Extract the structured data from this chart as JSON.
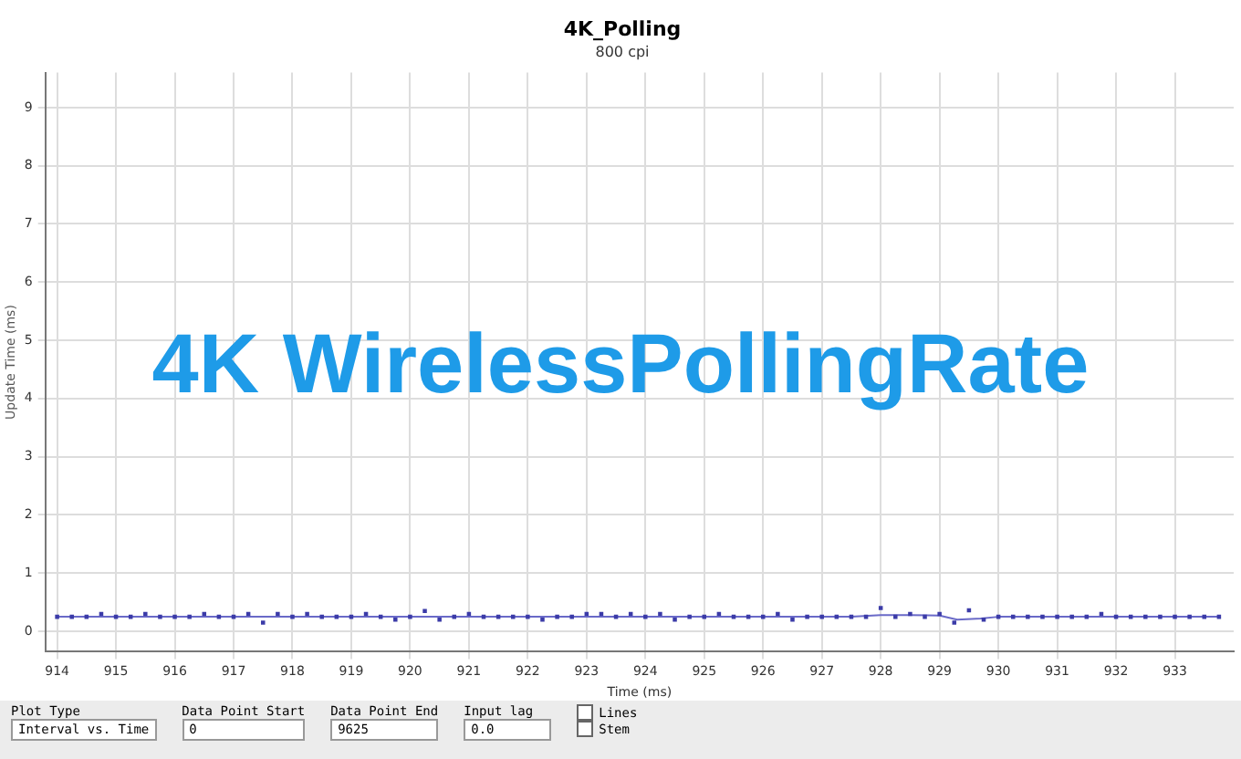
{
  "chart_data": {
    "type": "scatter",
    "title": "4K_Polling",
    "subtitle": "800 cpi",
    "xlabel": "Time (ms)",
    "ylabel": "Update Time (ms)",
    "xlim": [
      913.8,
      934
    ],
    "xticks": [
      914,
      915,
      916,
      917,
      918,
      919,
      920,
      921,
      922,
      923,
      924,
      925,
      926,
      927,
      928,
      929,
      930,
      931,
      932,
      933
    ],
    "ylim": [
      -0.35,
      9.6
    ],
    "yticks": [
      0,
      1,
      2,
      3,
      4,
      5,
      6,
      7,
      8,
      9
    ],
    "grid": true,
    "legend": false,
    "series": [
      {
        "type": "scatter",
        "color": "#3b3ba8",
        "marker": "square",
        "x": [
          914,
          914.25,
          914.5,
          914.75,
          915,
          915.25,
          915.5,
          915.75,
          916,
          916.25,
          916.5,
          916.75,
          917,
          917.25,
          917.5,
          917.75,
          918,
          918.25,
          918.5,
          918.75,
          919,
          919.25,
          919.5,
          919.75,
          920,
          920.25,
          920.5,
          920.75,
          921,
          921.25,
          921.5,
          921.75,
          922,
          922.25,
          922.5,
          922.75,
          923,
          923.25,
          923.5,
          923.75,
          924,
          924.25,
          924.5,
          924.75,
          925,
          925.25,
          925.5,
          925.75,
          926,
          926.25,
          926.5,
          926.75,
          927,
          927.25,
          927.5,
          927.75,
          928,
          928.25,
          928.5,
          928.75,
          929,
          929.25,
          929.5,
          929.75,
          930,
          930.25,
          930.5,
          930.75,
          931,
          931.25,
          931.5,
          931.75,
          932,
          932.25,
          932.5,
          932.75,
          933,
          933.25,
          933.5,
          933.75
        ],
        "values": [
          0.25,
          0.25,
          0.25,
          0.3,
          0.25,
          0.25,
          0.3,
          0.25,
          0.25,
          0.25,
          0.3,
          0.25,
          0.25,
          0.3,
          0.15,
          0.3,
          0.25,
          0.3,
          0.25,
          0.25,
          0.25,
          0.3,
          0.25,
          0.2,
          0.25,
          0.35,
          0.2,
          0.25,
          0.3,
          0.25,
          0.25,
          0.25,
          0.25,
          0.2,
          0.25,
          0.25,
          0.3,
          0.3,
          0.25,
          0.3,
          0.25,
          0.3,
          0.2,
          0.25,
          0.25,
          0.3,
          0.25,
          0.25,
          0.25,
          0.3,
          0.2,
          0.25,
          0.25,
          0.25,
          0.25,
          0.25,
          0.4,
          0.25,
          0.3,
          0.25,
          0.3,
          0.15,
          0.36,
          0.2,
          0.25,
          0.25,
          0.25,
          0.25,
          0.25,
          0.25,
          0.25,
          0.3,
          0.25,
          0.25,
          0.25,
          0.25,
          0.25,
          0.25,
          0.25,
          0.25
        ]
      },
      {
        "type": "line",
        "color": "#6a6ac8",
        "line_style": "solid",
        "x": [
          914,
          927.5,
          928,
          928.5,
          929,
          929.3,
          929.7,
          930,
          933.75
        ],
        "values": [
          0.25,
          0.25,
          0.28,
          0.28,
          0.27,
          0.2,
          0.22,
          0.25,
          0.25
        ]
      }
    ],
    "annotations": [
      "4K WirelessPollingRate",
      "Plot Type",
      "Interval vs. Time",
      "Data Point Start",
      "0",
      "Data Point End",
      "9625",
      "Input lag",
      "0.0",
      "Lines",
      "Stem"
    ]
  }
}
